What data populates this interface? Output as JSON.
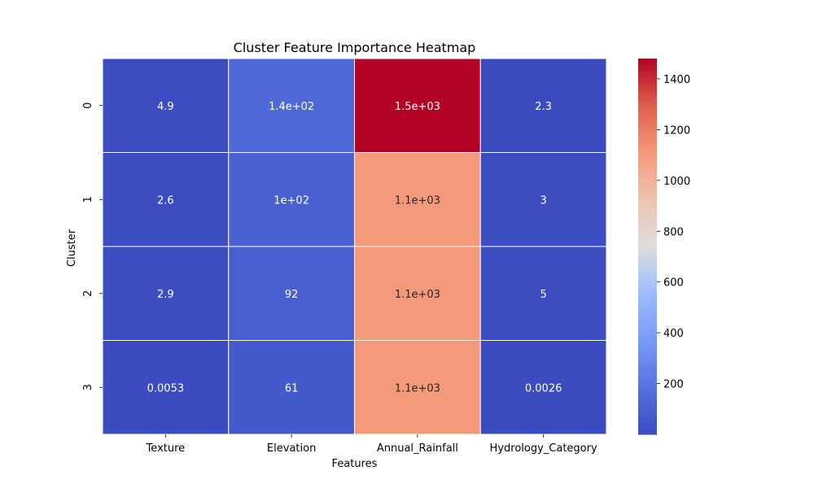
{
  "chart_data": {
    "type": "heatmap",
    "title": "Cluster Feature Importance Heatmap",
    "xlabel": "Features",
    "ylabel": "Cluster",
    "x_categories": [
      "Texture",
      "Elevation",
      "Annual_Rainfall",
      "Hydrology_Category"
    ],
    "y_categories": [
      "0",
      "1",
      "2",
      "3"
    ],
    "values": [
      [
        4.9,
        140,
        1480,
        2.3
      ],
      [
        2.6,
        100,
        1110,
        3
      ],
      [
        2.9,
        92,
        1110,
        5
      ],
      [
        0.0053,
        61,
        1110,
        0.0026
      ]
    ],
    "annotations": [
      [
        "4.9",
        "1.4e+02",
        "1.5e+03",
        "2.3"
      ],
      [
        "2.6",
        "1e+02",
        "1.1e+03",
        "3"
      ],
      [
        "2.9",
        "92",
        "1.1e+03",
        "5"
      ],
      [
        "0.0053",
        "61",
        "1.1e+03",
        "0.0026"
      ]
    ],
    "colormap": "coolwarm",
    "color_range": [
      0.0026,
      1480
    ],
    "colorbar_ticks": [
      200,
      400,
      600,
      800,
      1000,
      1200,
      1400
    ]
  }
}
